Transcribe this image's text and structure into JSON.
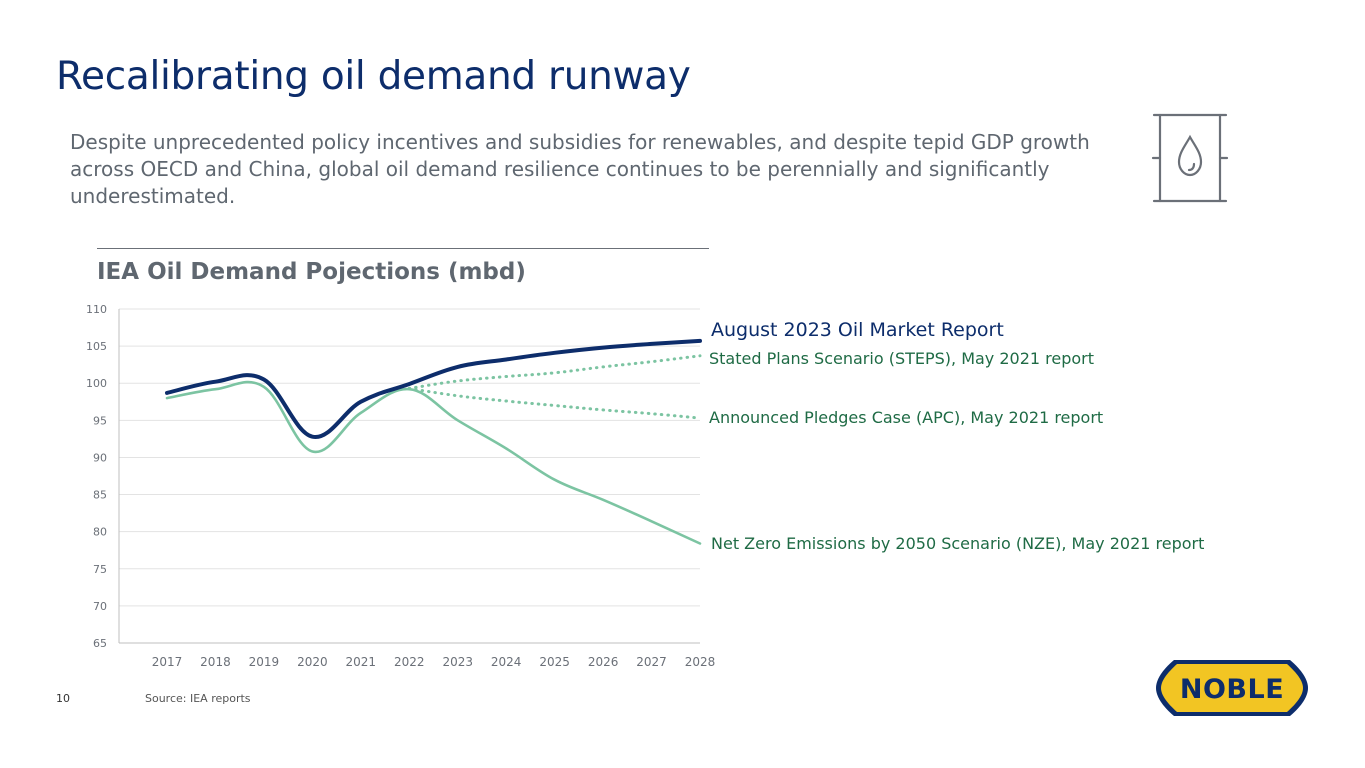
{
  "page": {
    "title": "Recalibrating oil demand runway",
    "subtitle": "Despite unprecedented policy incentives and subsidies for renewables, and despite tepid GDP growth across OECD and China, global oil demand resilience continues to be perennially and significantly underestimated.",
    "page_number": "10",
    "source": "Source: IEA reports",
    "logo_text": "NOBLE",
    "barrel_icon": "oil-barrel-icon"
  },
  "colors": {
    "title": "#0d2d6b",
    "navy": "#0d2d6b",
    "teal": "#7cc4a2",
    "label_green": "#1f6b45",
    "grid": "#e3e3e3",
    "axis": "#bfbfbf",
    "logo_fill": "#f2c523"
  },
  "chart_data": {
    "type": "line",
    "title": "IEA Oil Demand Pojections (mbd)",
    "xlabel": "",
    "ylabel": "",
    "ylim": [
      65,
      110
    ],
    "yticks": [
      65,
      70,
      75,
      80,
      85,
      90,
      95,
      100,
      105,
      110
    ],
    "categories": [
      "2017",
      "2018",
      "2019",
      "2020",
      "2021",
      "2022",
      "2023",
      "2024",
      "2025",
      "2026",
      "2027",
      "2028"
    ],
    "series": [
      {
        "name": "August 2023 Oil Market Report",
        "style": "solid-thick",
        "color": "#0d2d6b",
        "values": [
          98.7,
          100.2,
          100.5,
          92.8,
          97.5,
          99.9,
          102.2,
          103.2,
          104.1,
          104.8,
          105.3,
          105.7
        ]
      },
      {
        "name": "Net Zero Emissions by 2050 Scenario (NZE), May 2021 report",
        "style": "solid",
        "color": "#7cc4a2",
        "values": [
          98.0,
          99.2,
          99.5,
          90.8,
          96.0,
          99.2,
          95.0,
          91.2,
          87.0,
          84.3,
          81.4,
          78.4
        ]
      },
      {
        "name": "Stated Plans Scenario (STEPS), May 2021 report",
        "style": "dotted",
        "color": "#7cc4a2",
        "values": [
          null,
          null,
          null,
          null,
          null,
          99.3,
          100.3,
          100.9,
          101.4,
          102.2,
          102.9,
          103.7
        ]
      },
      {
        "name": "Announced Pledges Case (APC), May 2021 report",
        "style": "dotted",
        "color": "#7cc4a2",
        "values": [
          null,
          null,
          null,
          null,
          null,
          99.3,
          98.3,
          97.6,
          97.0,
          96.4,
          95.9,
          95.3
        ]
      }
    ]
  }
}
